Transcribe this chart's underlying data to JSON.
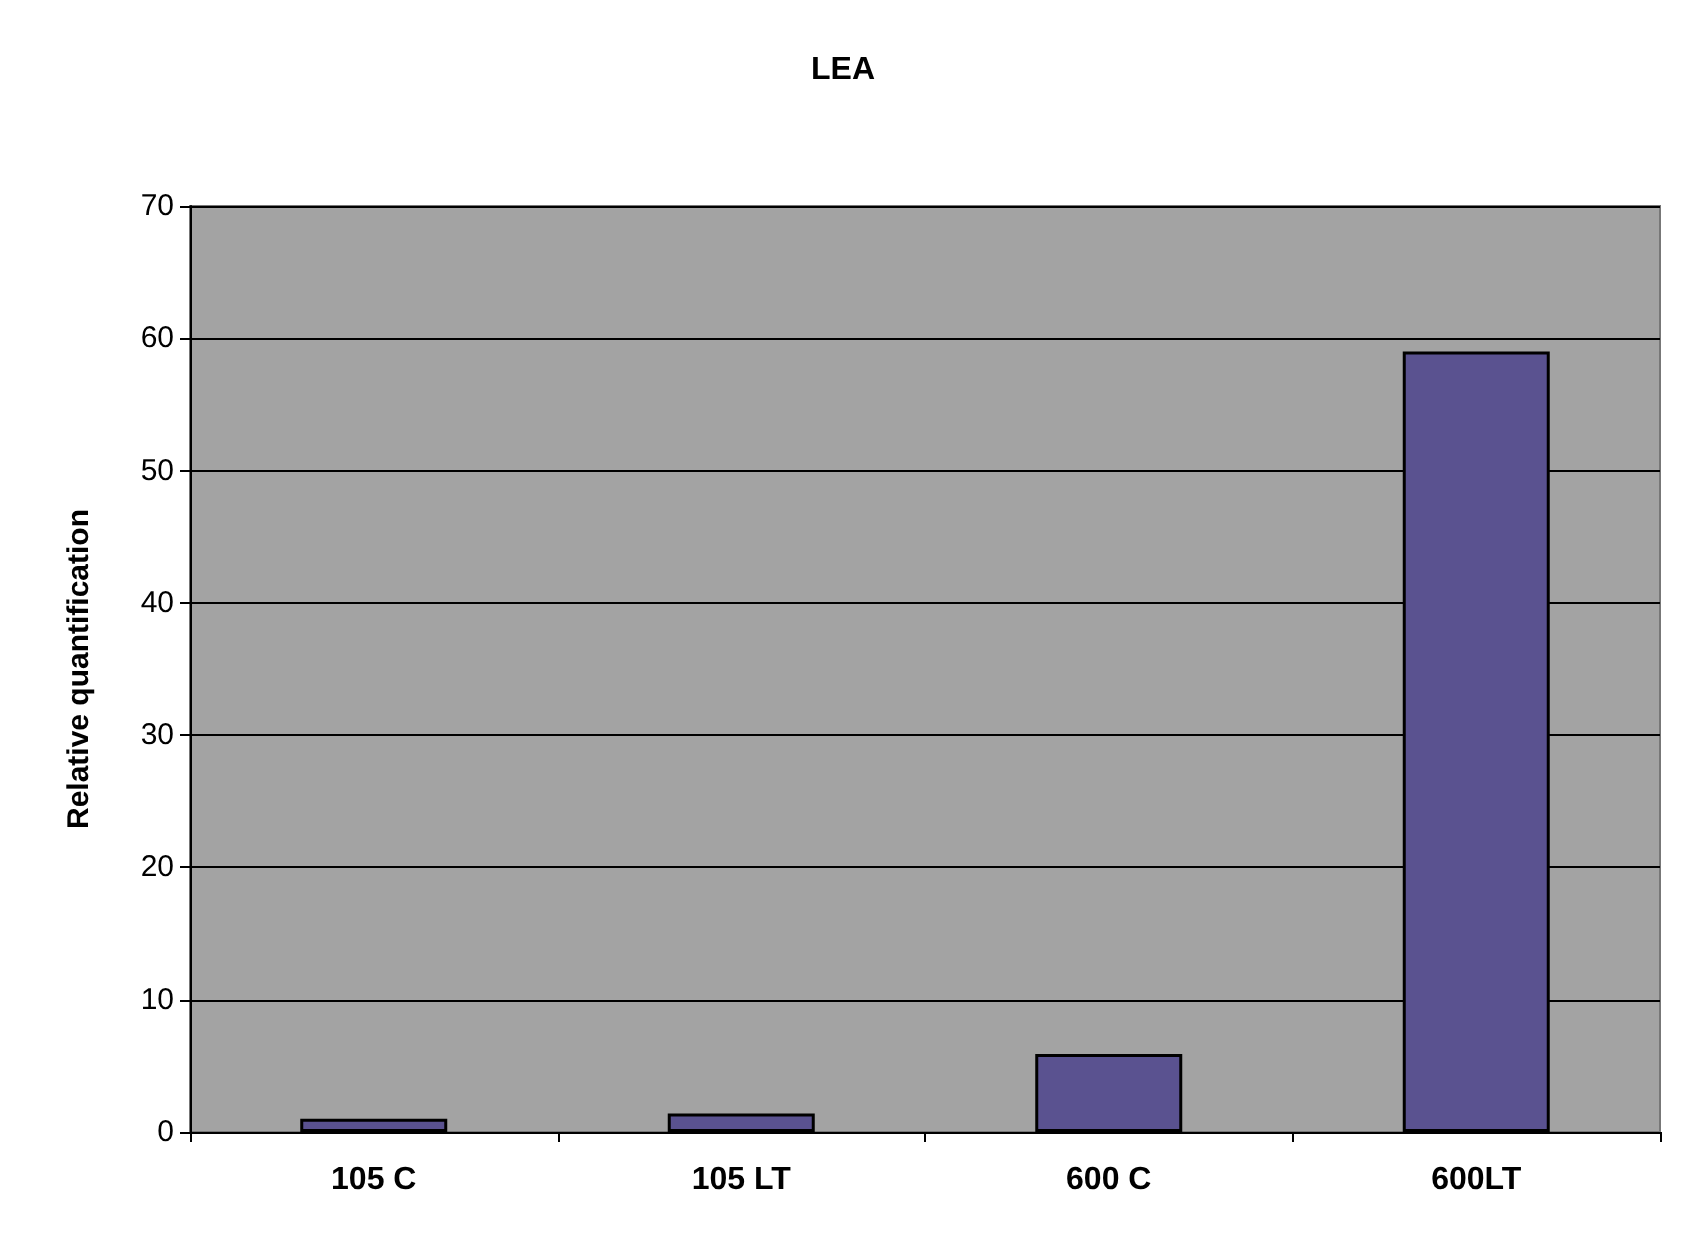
{
  "chart_data": {
    "type": "bar",
    "title": "LEA",
    "ylabel": "Relative quantification",
    "categories": [
      "105 C",
      "105 LT",
      "600 C",
      "600LT"
    ],
    "values": [
      1,
      1.4,
      5.9,
      59
    ],
    "color": "#5a5290",
    "ylim": [
      0,
      70
    ],
    "yticks": [
      0,
      10,
      20,
      30,
      40,
      50,
      60,
      70
    ],
    "grid": "y"
  }
}
